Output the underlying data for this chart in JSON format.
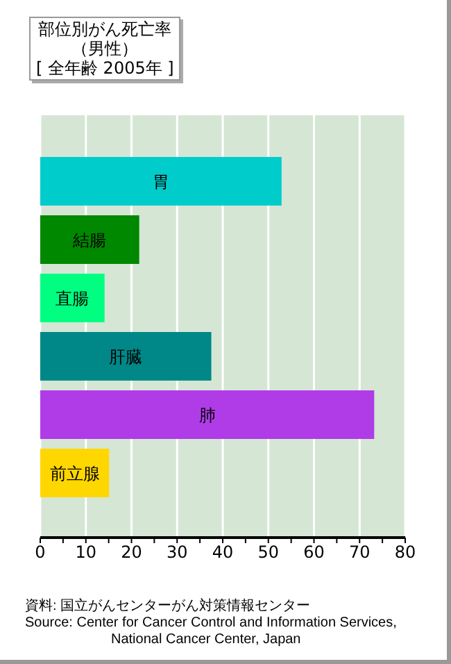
{
  "chart_data": {
    "type": "bar",
    "orientation": "horizontal",
    "title": "部位別がん死亡率（男性）",
    "subtitle": "[ 全年齢 2005年 ]",
    "categories": [
      "胃",
      "結腸",
      "直腸",
      "肝臓",
      "肺",
      "前立腺"
    ],
    "values": [
      52.9,
      21.7,
      14.1,
      37.5,
      73.2,
      15.1
    ],
    "colors": [
      "#00cccc",
      "#008800",
      "#00ff80",
      "#008888",
      "#b03ce8",
      "#ffd700"
    ],
    "xlim": [
      0,
      80
    ],
    "xticks": [
      0,
      {
        "value": 5,
        "label": null
      },
      10,
      {
        "value": 15,
        "label": null
      },
      20,
      {
        "value": 25,
        "label": null
      },
      30,
      {
        "value": 35,
        "label": null
      },
      40,
      {
        "value": 45,
        "label": null
      },
      50,
      {
        "value": 55,
        "label": null
      },
      60,
      {
        "value": 65,
        "label": null
      },
      70,
      {
        "value": 75,
        "label": null
      },
      80
    ],
    "grid": "x",
    "tick_labels": "x",
    "legend": false,
    "annotations": [
      "資料: 国立がんセンターがん対策情報センター",
      "Source:  Center for Cancer Control and Information Services, National Cancer Center, Japan"
    ]
  }
}
